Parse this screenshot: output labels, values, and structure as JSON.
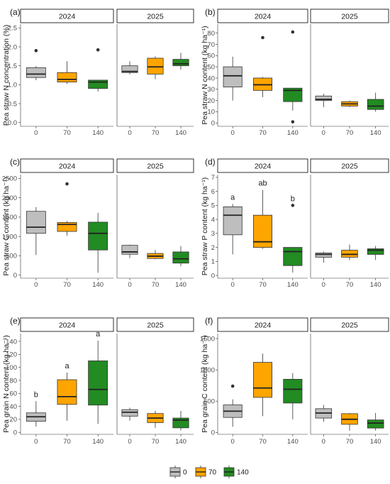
{
  "colors": {
    "0": "#bebebe",
    "70": "#ffa500",
    "140": "#228b22"
  },
  "legend": {
    "items": [
      "0",
      "70",
      "140"
    ]
  },
  "chart_data": [
    {
      "type": "box",
      "panel_label": "(a)",
      "ylabel": "Pea straw N concentration (%)",
      "ylim": [
        -0.1,
        2.6
      ],
      "yticks": [
        "0.0",
        "0.5",
        "1.0",
        "1.5",
        "2.0",
        "2.5"
      ],
      "ytick_values": [
        0,
        0.5,
        1.0,
        1.5,
        2.0,
        2.5
      ],
      "categories": [
        "0",
        "70",
        "140"
      ],
      "facets": [
        {
          "label": "2024",
          "boxes": [
            {
              "group": "0",
              "whisker_low": 1.12,
              "q1": 1.19,
              "median": 1.28,
              "q3": 1.45,
              "whisker_high": 1.49,
              "outliers": [
                1.9
              ],
              "letter": ""
            },
            {
              "group": "70",
              "whisker_low": 1.02,
              "q1": 1.07,
              "median": 1.14,
              "q3": 1.32,
              "whisker_high": 1.62,
              "outliers": [],
              "letter": ""
            },
            {
              "group": "140",
              "whisker_low": 0.82,
              "q1": 0.9,
              "median": 1.07,
              "q3": 1.12,
              "whisker_high": 1.13,
              "outliers": [
                1.92
              ],
              "letter": ""
            }
          ]
        },
        {
          "label": "2025",
          "boxes": [
            {
              "group": "0",
              "whisker_low": 1.27,
              "q1": 1.32,
              "median": 1.35,
              "q3": 1.5,
              "whisker_high": 1.62,
              "outliers": [],
              "letter": ""
            },
            {
              "group": "70",
              "whisker_low": 1.15,
              "q1": 1.28,
              "median": 1.47,
              "q3": 1.7,
              "whisker_high": 1.75,
              "outliers": [],
              "letter": ""
            },
            {
              "group": "140",
              "whisker_low": 1.4,
              "q1": 1.5,
              "median": 1.55,
              "q3": 1.67,
              "whisker_high": 1.84,
              "outliers": [],
              "letter": ""
            }
          ]
        }
      ]
    },
    {
      "type": "box",
      "panel_label": "(b)",
      "ylabel": "Pea straw N content (kg ha⁻¹)",
      "ylim": [
        -3,
        88
      ],
      "yticks": [
        "0",
        "10",
        "20",
        "30",
        "40",
        "50",
        "60",
        "70",
        "80"
      ],
      "ytick_values": [
        0,
        10,
        20,
        30,
        40,
        50,
        60,
        70,
        80
      ],
      "categories": [
        "0",
        "70",
        "140"
      ],
      "facets": [
        {
          "label": "2024",
          "boxes": [
            {
              "group": "0",
              "whisker_low": 20,
              "q1": 32,
              "median": 42,
              "q3": 50,
              "whisker_high": 59,
              "outliers": [],
              "letter": ""
            },
            {
              "group": "70",
              "whisker_low": 23,
              "q1": 29,
              "median": 34,
              "q3": 40,
              "whisker_high": 41,
              "outliers": [
                76
              ],
              "letter": ""
            },
            {
              "group": "140",
              "whisker_low": 11,
              "q1": 19,
              "median": 29,
              "q3": 31,
              "whisker_high": 31,
              "outliers": [
                81,
                1
              ],
              "letter": ""
            }
          ]
        },
        {
          "label": "2025",
          "boxes": [
            {
              "group": "0",
              "whisker_low": 14,
              "q1": 20,
              "median": 21,
              "q3": 24,
              "whisker_high": 26,
              "outliers": [],
              "letter": ""
            },
            {
              "group": "70",
              "whisker_low": 14,
              "q1": 15,
              "median": 17,
              "q3": 19,
              "whisker_high": 20,
              "outliers": [],
              "letter": ""
            },
            {
              "group": "140",
              "whisker_low": 10,
              "q1": 12,
              "median": 15,
              "q3": 21,
              "whisker_high": 27,
              "outliers": [],
              "letter": ""
            }
          ]
        }
      ]
    },
    {
      "type": "box",
      "panel_label": "(c)",
      "ylabel": "Pea straw C content (kg ha⁻¹)",
      "ylim": [
        -80,
        2600
      ],
      "yticks": [
        "0",
        "500",
        "1000",
        "1500",
        "2000",
        "2500"
      ],
      "ytick_values": [
        0,
        500,
        1000,
        1500,
        2000,
        2500
      ],
      "categories": [
        "0",
        "70",
        "140"
      ],
      "facets": [
        {
          "label": "2024",
          "boxes": [
            {
              "group": "0",
              "whisker_low": 520,
              "q1": 1080,
              "median": 1240,
              "q3": 1650,
              "whisker_high": 1760,
              "outliers": [],
              "letter": ""
            },
            {
              "group": "70",
              "whisker_low": 1020,
              "q1": 1130,
              "median": 1310,
              "q3": 1360,
              "whisker_high": 1400,
              "outliers": [
                2360
              ],
              "letter": ""
            },
            {
              "group": "140",
              "whisker_low": 60,
              "q1": 650,
              "median": 1080,
              "q3": 1370,
              "whisker_high": 1610,
              "outliers": [],
              "letter": ""
            }
          ]
        },
        {
          "label": "2025",
          "boxes": [
            {
              "group": "0",
              "whisker_low": 440,
              "q1": 540,
              "median": 600,
              "q3": 770,
              "whisker_high": 790,
              "outliers": [],
              "letter": ""
            },
            {
              "group": "70",
              "whisker_low": 410,
              "q1": 430,
              "median": 490,
              "q3": 560,
              "whisker_high": 650,
              "outliers": [],
              "letter": ""
            },
            {
              "group": "140",
              "whisker_low": 230,
              "q1": 310,
              "median": 420,
              "q3": 600,
              "whisker_high": 750,
              "outliers": [],
              "letter": ""
            }
          ]
        }
      ]
    },
    {
      "type": "box",
      "panel_label": "(d)",
      "ylabel": "Pea straw P content (kg ha⁻¹)",
      "ylim": [
        -0.2,
        7.2
      ],
      "yticks": [
        "0",
        "1",
        "2",
        "3",
        "4",
        "5",
        "6",
        "7"
      ],
      "ytick_values": [
        0,
        1,
        2,
        3,
        4,
        5,
        6,
        7
      ],
      "categories": [
        "0",
        "70",
        "140"
      ],
      "facets": [
        {
          "label": "2024",
          "boxes": [
            {
              "group": "0",
              "whisker_low": 1.5,
              "q1": 2.9,
              "median": 4.3,
              "q3": 4.9,
              "whisker_high": 5.1,
              "outliers": [],
              "letter": "a"
            },
            {
              "group": "70",
              "whisker_low": 1.9,
              "q1": 2.0,
              "median": 2.4,
              "q3": 4.3,
              "whisker_high": 6.1,
              "outliers": [],
              "letter": "ab"
            },
            {
              "group": "140",
              "whisker_low": 0.2,
              "q1": 0.7,
              "median": 1.7,
              "q3": 2.0,
              "whisker_high": 2.0,
              "outliers": [
                5.0
              ],
              "letter": "b"
            }
          ]
        },
        {
          "label": "2025",
          "boxes": [
            {
              "group": "0",
              "whisker_low": 0.9,
              "q1": 1.3,
              "median": 1.5,
              "q3": 1.6,
              "whisker_high": 1.7,
              "outliers": [],
              "letter": ""
            },
            {
              "group": "70",
              "whisker_low": 1.1,
              "q1": 1.3,
              "median": 1.5,
              "q3": 1.8,
              "whisker_high": 2.2,
              "outliers": [],
              "letter": ""
            },
            {
              "group": "140",
              "whisker_low": 1.1,
              "q1": 1.5,
              "median": 1.8,
              "q3": 1.9,
              "whisker_high": 2.1,
              "outliers": [],
              "letter": ""
            }
          ]
        }
      ]
    },
    {
      "type": "box",
      "panel_label": "(e)",
      "ylabel": "Pea grain N content (kg ha⁻¹)",
      "ylim": [
        -3,
        152
      ],
      "yticks": [
        "0",
        "20",
        "40",
        "60",
        "80",
        "100",
        "120",
        "140"
      ],
      "ytick_values": [
        0,
        20,
        40,
        60,
        80,
        100,
        120,
        140
      ],
      "categories": [
        "0",
        "70",
        "140"
      ],
      "facets": [
        {
          "label": "2024",
          "boxes": [
            {
              "group": "0",
              "whisker_low": 9,
              "q1": 17,
              "median": 24,
              "q3": 30,
              "whisker_high": 48,
              "outliers": [],
              "letter": "b"
            },
            {
              "group": "70",
              "whisker_low": 18,
              "q1": 43,
              "median": 55,
              "q3": 81,
              "whisker_high": 92,
              "outliers": [],
              "letter": "a"
            },
            {
              "group": "140",
              "whisker_low": 13,
              "q1": 42,
              "median": 66,
              "q3": 110,
              "whisker_high": 141,
              "outliers": [],
              "letter": "a"
            }
          ]
        },
        {
          "label": "2025",
          "boxes": [
            {
              "group": "0",
              "whisker_low": 18,
              "q1": 25,
              "median": 31,
              "q3": 35,
              "whisker_high": 38,
              "outliers": [],
              "letter": ""
            },
            {
              "group": "70",
              "whisker_low": 7,
              "q1": 15,
              "median": 22,
              "q3": 29,
              "whisker_high": 33,
              "outliers": [],
              "letter": ""
            },
            {
              "group": "140",
              "whisker_low": 3,
              "q1": 7,
              "median": 19,
              "q3": 22,
              "whisker_high": 33,
              "outliers": [],
              "letter": ""
            }
          ]
        }
      ]
    },
    {
      "type": "box",
      "panel_label": "(f)",
      "ylabel": "Pea grain C content (kg ha⁻¹)",
      "ylim": [
        -30,
        1580
      ],
      "yticks": [
        "0",
        "500",
        "1000",
        "1500"
      ],
      "ytick_values": [
        0,
        500,
        1000,
        1500
      ],
      "categories": [
        "0",
        "70",
        "140"
      ],
      "facets": [
        {
          "label": "2024",
          "boxes": [
            {
              "group": "0",
              "whisker_low": 90,
              "q1": 240,
              "median": 340,
              "q3": 440,
              "whisker_high": 530,
              "outliers": [
                740
              ],
              "letter": ""
            },
            {
              "group": "70",
              "whisker_low": 260,
              "q1": 560,
              "median": 710,
              "q3": 1120,
              "whisker_high": 1260,
              "outliers": [],
              "letter": ""
            },
            {
              "group": "140",
              "whisker_low": 210,
              "q1": 470,
              "median": 690,
              "q3": 850,
              "whisker_high": 950,
              "outliers": [],
              "letter": ""
            }
          ]
        },
        {
          "label": "2025",
          "boxes": [
            {
              "group": "0",
              "whisker_low": 170,
              "q1": 230,
              "median": 310,
              "q3": 380,
              "whisker_high": 440,
              "outliers": [],
              "letter": ""
            },
            {
              "group": "70",
              "whisker_low": 30,
              "q1": 130,
              "median": 210,
              "q3": 300,
              "whisker_high": 310,
              "outliers": [],
              "letter": ""
            },
            {
              "group": "140",
              "whisker_low": 30,
              "q1": 70,
              "median": 150,
              "q3": 200,
              "whisker_high": 310,
              "outliers": [],
              "letter": ""
            }
          ]
        }
      ]
    }
  ]
}
